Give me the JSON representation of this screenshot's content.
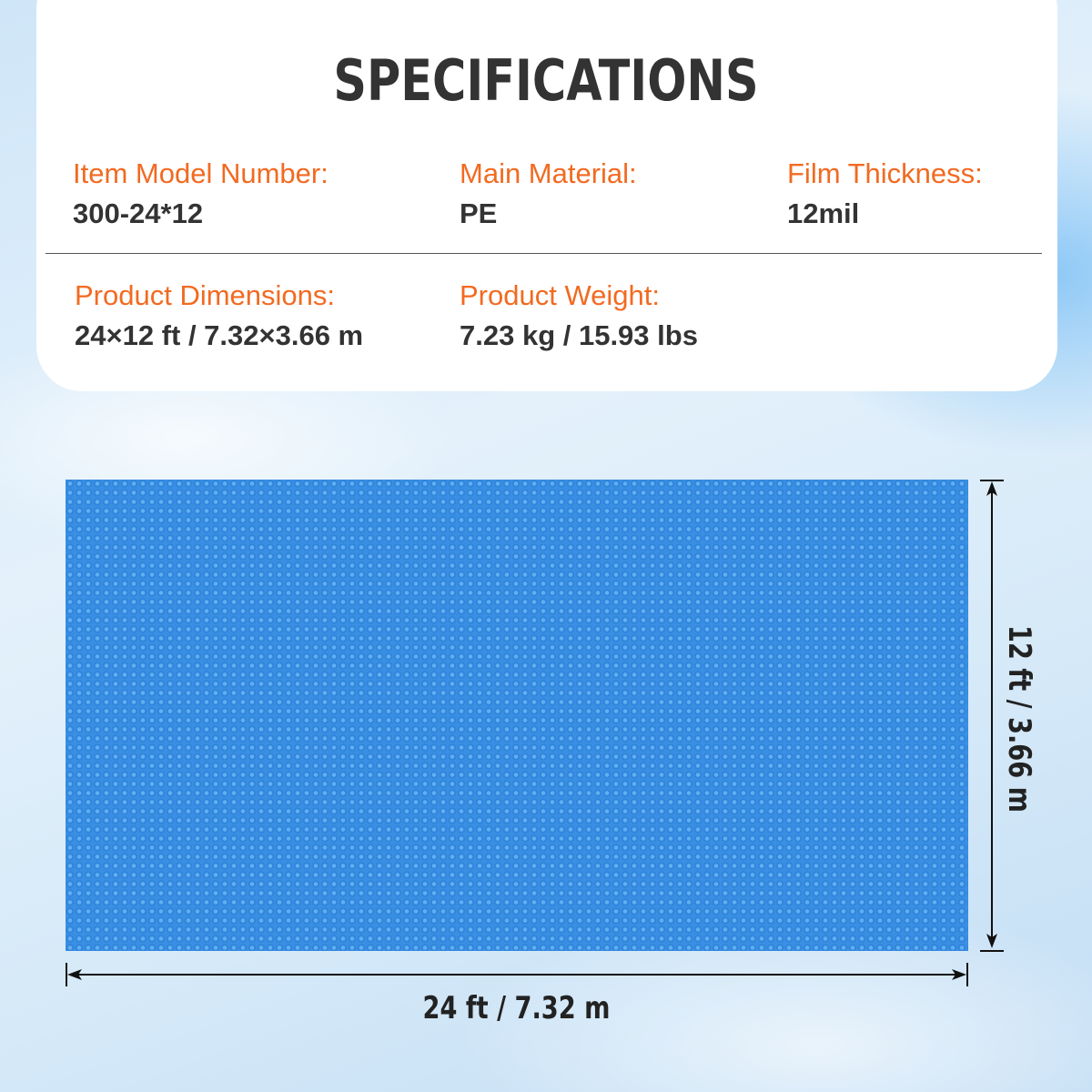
{
  "title": "SPECIFICATIONS",
  "specs": [
    {
      "label": "Item Model Number:",
      "value": "300-24*12"
    },
    {
      "label": "Main Material:",
      "value": "PE"
    },
    {
      "label": "Film Thickness:",
      "value": "12mil"
    },
    {
      "label": "Product Dimensions:",
      "value": "24×12 ft / 7.32×3.66 m"
    },
    {
      "label": "Product Weight:",
      "value": "7.23 kg / 15.93 lbs"
    }
  ],
  "dimensions": {
    "width": "24 ft / 7.32 m",
    "height": "12 ft / 3.66 m"
  },
  "colors": {
    "accent": "#f26a21",
    "text": "#333333",
    "cover": "#3b8fe3"
  }
}
